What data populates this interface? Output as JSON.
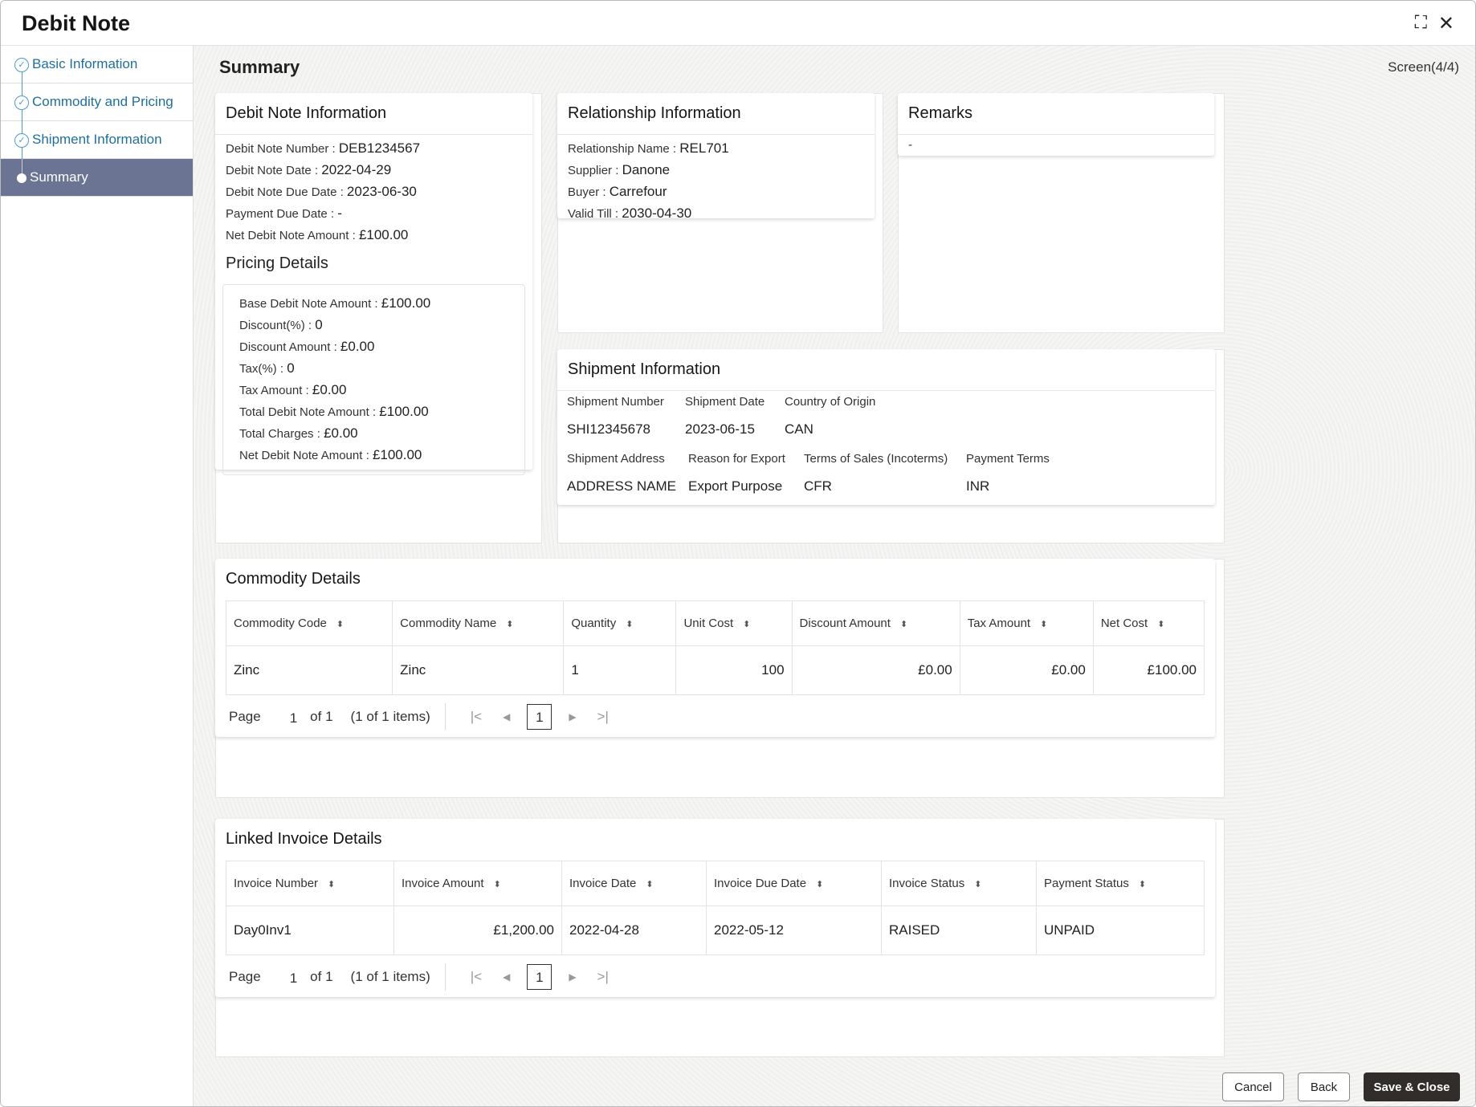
{
  "header": {
    "title": "Debit Note",
    "minimize_icon": "collapse-icon",
    "close_icon": "close-icon"
  },
  "sidebar": {
    "items": [
      {
        "label": "Basic Information",
        "state": "completed"
      },
      {
        "label": "Commodity and Pricing",
        "state": "completed"
      },
      {
        "label": "Shipment Information",
        "state": "completed"
      },
      {
        "label": "Summary",
        "state": "active"
      }
    ]
  },
  "main": {
    "title": "Summary",
    "screen": "Screen(4/4)"
  },
  "debit_note": {
    "title": "Debit Note Information",
    "fields": [
      {
        "label": "Debit Note Number",
        "value": "DEB1234567"
      },
      {
        "label": "Debit Note Date",
        "value": "2022-04-29"
      },
      {
        "label": "Debit Note Due Date",
        "value": "2023-06-30"
      },
      {
        "label": "Payment Due Date",
        "value": "-"
      },
      {
        "label": "Net Debit Note Amount",
        "value": "£100.00"
      }
    ],
    "pricing_title": "Pricing Details",
    "pricing": [
      {
        "label": "Base Debit Note Amount",
        "value": "£100.00"
      },
      {
        "label": "Discount(%)",
        "value": "0"
      },
      {
        "label": "Discount Amount",
        "value": "£0.00"
      },
      {
        "label": "Tax(%)",
        "value": "0"
      },
      {
        "label": "Tax Amount",
        "value": "£0.00"
      },
      {
        "label": "Total Debit Note Amount",
        "value": "£100.00"
      },
      {
        "label": "Total Charges",
        "value": "£0.00"
      },
      {
        "label": "Net Debit Note Amount",
        "value": "£100.00"
      }
    ]
  },
  "relationship": {
    "title": "Relationship Information",
    "fields": [
      {
        "label": "Relationship Name",
        "value": "REL701"
      },
      {
        "label": "Supplier",
        "value": "Danone"
      },
      {
        "label": "Buyer",
        "value": "Carrefour"
      },
      {
        "label": "Valid Till",
        "value": "2030-04-30"
      }
    ]
  },
  "remarks": {
    "title": "Remarks",
    "value": "-"
  },
  "shipment": {
    "title": "Shipment Information",
    "row1": [
      {
        "label": "Shipment Number",
        "value": "SHI12345678"
      },
      {
        "label": "Shipment Date",
        "value": "2023-06-15"
      },
      {
        "label": "Country of Origin",
        "value": "CAN"
      }
    ],
    "row2": [
      {
        "label": "Shipment Address",
        "value": "ADDRESS NAME"
      },
      {
        "label": "Reason for Export",
        "value": "Export Purpose"
      },
      {
        "label": "Terms of Sales (Incoterms)",
        "value": "CFR"
      },
      {
        "label": "Payment Terms",
        "value": "INR"
      }
    ]
  },
  "commodity": {
    "title": "Commodity Details",
    "columns": [
      "Commodity Code",
      "Commodity Name",
      "Quantity",
      "Unit Cost",
      "Discount Amount",
      "Tax Amount",
      "Net Cost"
    ],
    "rows": [
      [
        "Zinc",
        "Zinc",
        "1",
        "100",
        "£0.00",
        "£0.00",
        "£100.00"
      ]
    ],
    "pagination": {
      "page_label": "Page",
      "page": "1",
      "of": "of 1",
      "items": "(1 of 1 items)",
      "current": "1"
    }
  },
  "invoices": {
    "title": "Linked Invoice Details",
    "columns": [
      "Invoice Number",
      "Invoice Amount",
      "Invoice Date",
      "Invoice Due Date",
      "Invoice Status",
      "Payment Status"
    ],
    "rows": [
      [
        "Day0Inv1",
        "£1,200.00",
        "2022-04-28",
        "2022-05-12",
        "RAISED",
        "UNPAID"
      ]
    ],
    "pagination": {
      "page_label": "Page",
      "page": "1",
      "of": "of 1",
      "items": "(1 of 1 items)",
      "current": "1"
    }
  },
  "footer": {
    "cancel": "Cancel",
    "back": "Back",
    "save_close": "Save & Close"
  }
}
